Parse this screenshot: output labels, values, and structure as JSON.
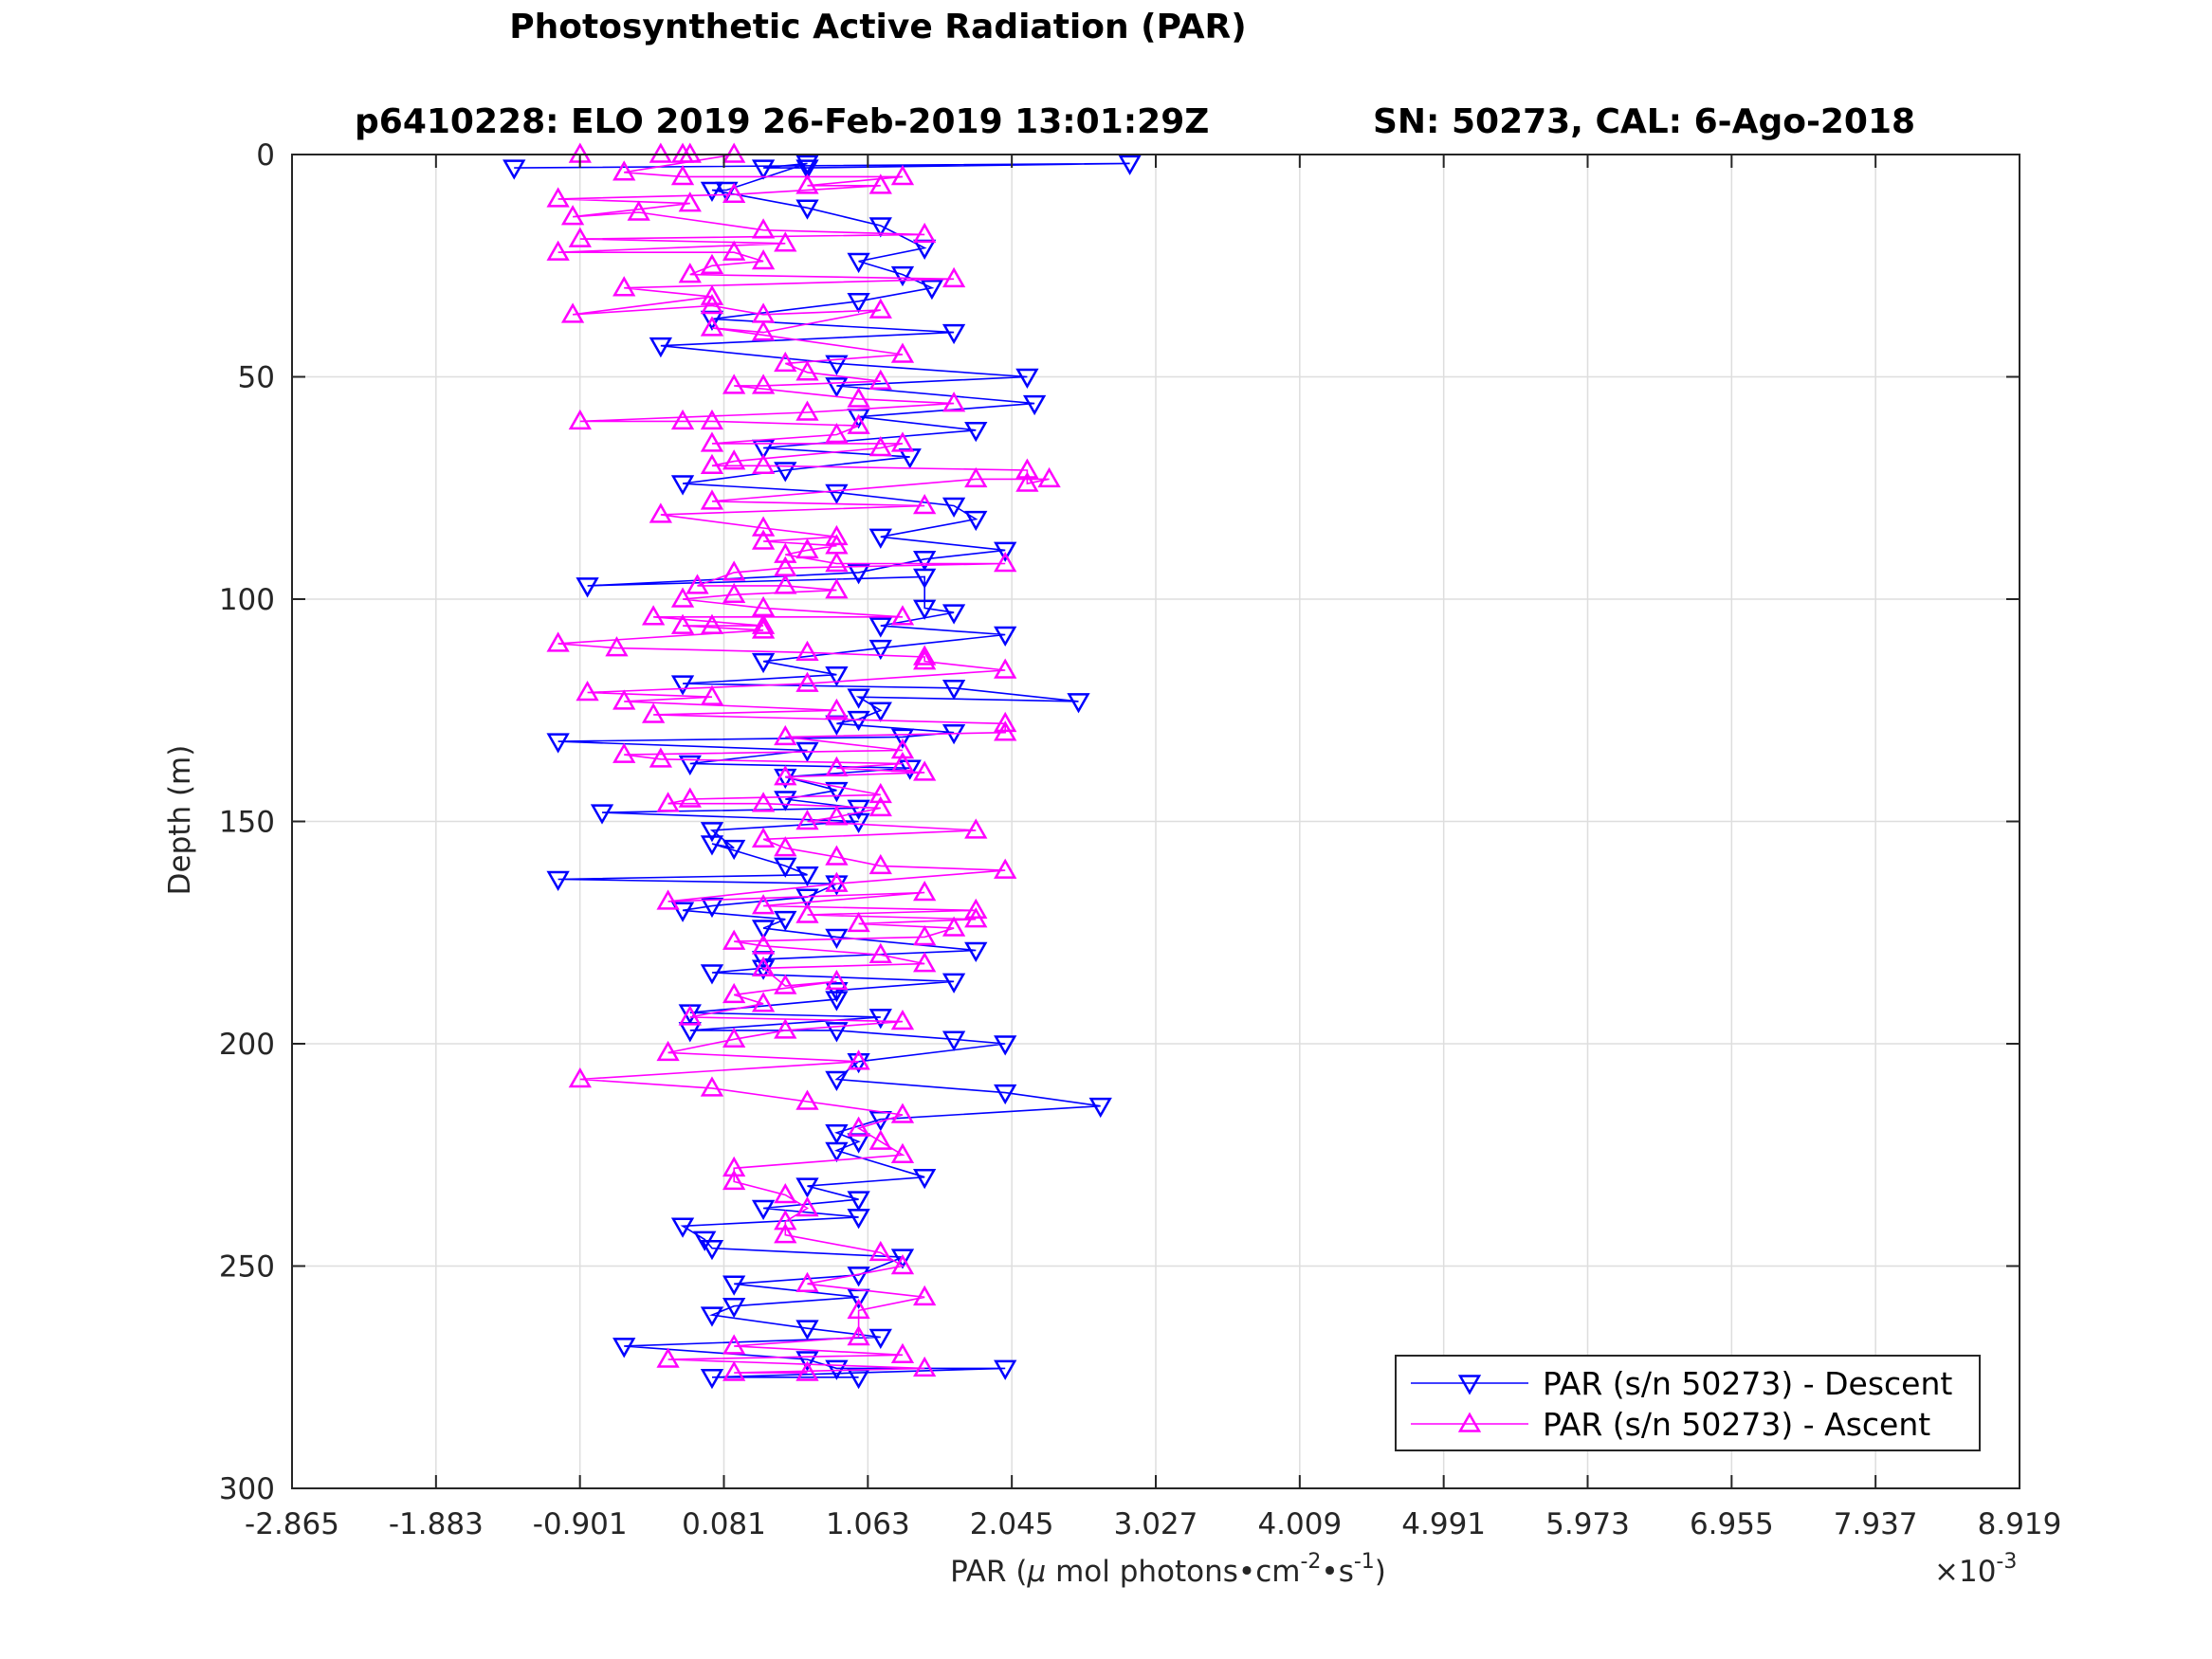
{
  "chart_data": {
    "type": "scatter",
    "title": "Photosynthetic Active Radiation (PAR)",
    "subtitle_left": "p6410228: ELO 2019 26-Feb-2019 13:01:29Z",
    "subtitle_right": "SN: 50273, CAL: 6-Ago-2018",
    "xlabel": "PAR (μ mol photons•cm⁻²•s⁻¹)",
    "xlabel_parts": {
      "pre": "PAR (",
      "mu": "μ",
      "mid1": " mol photons•cm",
      "sup1": "-2",
      "mid2": "•s",
      "sup2": "-1",
      "post": ")"
    },
    "x_exponent_base": "×10",
    "x_exponent_power": "-3",
    "ylabel": "Depth (m)",
    "xlim": [
      -2.865,
      8.919
    ],
    "ylim": [
      0,
      300
    ],
    "y_reversed": true,
    "x_ticks": [
      "-2.865",
      "-1.883",
      "-0.901",
      "0.081",
      "1.063",
      "2.045",
      "3.027",
      "4.009",
      "4.991",
      "5.973",
      "6.955",
      "7.937",
      "8.919"
    ],
    "x_tick_values": [
      -2.865,
      -1.883,
      -0.901,
      0.081,
      1.063,
      2.045,
      3.027,
      4.009,
      4.991,
      5.973,
      6.955,
      7.937,
      8.919
    ],
    "y_ticks": [
      "0",
      "50",
      "100",
      "150",
      "200",
      "250",
      "300"
    ],
    "y_tick_values": [
      0,
      50,
      100,
      150,
      200,
      250,
      300
    ],
    "grid": true,
    "legend_position": "bottom-right",
    "series": [
      {
        "name": "PAR (s/n 50273) - Descent",
        "color": "#0000ff",
        "marker": "triangle-down",
        "points": [
          [
            -1.35,
            3
          ],
          [
            2.85,
            2
          ],
          [
            0.65,
            3
          ],
          [
            0.35,
            3
          ],
          [
            0.65,
            2
          ],
          [
            0.1,
            8
          ],
          [
            0.0,
            8
          ],
          [
            0.65,
            12
          ],
          [
            1.15,
            16
          ],
          [
            1.45,
            21
          ],
          [
            1.0,
            24
          ],
          [
            1.3,
            27
          ],
          [
            1.5,
            30
          ],
          [
            1.0,
            33
          ],
          [
            0.0,
            37
          ],
          [
            1.65,
            40
          ],
          [
            -0.35,
            43
          ],
          [
            0.85,
            47
          ],
          [
            2.15,
            50
          ],
          [
            0.85,
            52
          ],
          [
            2.2,
            56
          ],
          [
            1.0,
            59
          ],
          [
            1.8,
            62
          ],
          [
            0.35,
            66
          ],
          [
            1.35,
            68
          ],
          [
            0.5,
            71
          ],
          [
            -0.2,
            74
          ],
          [
            0.85,
            76
          ],
          [
            1.65,
            79
          ],
          [
            1.8,
            82
          ],
          [
            1.15,
            86
          ],
          [
            2.0,
            89
          ],
          [
            1.45,
            91
          ],
          [
            1.0,
            94
          ],
          [
            -0.85,
            97
          ],
          [
            1.45,
            95
          ],
          [
            1.45,
            102
          ],
          [
            1.65,
            103
          ],
          [
            1.15,
            106
          ],
          [
            2.0,
            108
          ],
          [
            1.15,
            111
          ],
          [
            0.35,
            114
          ],
          [
            0.85,
            117
          ],
          [
            -0.2,
            119
          ],
          [
            1.65,
            120
          ],
          [
            2.5,
            123
          ],
          [
            1.0,
            122
          ],
          [
            1.15,
            125
          ],
          [
            1.0,
            127
          ],
          [
            0.85,
            128
          ],
          [
            1.65,
            130
          ],
          [
            1.3,
            131
          ],
          [
            -1.05,
            132
          ],
          [
            0.65,
            134
          ],
          [
            -0.15,
            137
          ],
          [
            1.35,
            138
          ],
          [
            0.5,
            140
          ],
          [
            0.85,
            143
          ],
          [
            0.5,
            145
          ],
          [
            1.0,
            147
          ],
          [
            -0.75,
            148
          ],
          [
            1.0,
            150
          ],
          [
            0.0,
            152
          ],
          [
            0.15,
            156
          ],
          [
            0.0,
            155
          ],
          [
            0.5,
            160
          ],
          [
            0.65,
            162
          ],
          [
            -1.05,
            163
          ],
          [
            0.85,
            164
          ],
          [
            0.65,
            167
          ],
          [
            0.0,
            169
          ],
          [
            -0.2,
            170
          ],
          [
            0.5,
            172
          ],
          [
            0.35,
            174
          ],
          [
            0.85,
            176
          ],
          [
            1.8,
            179
          ],
          [
            0.35,
            181
          ],
          [
            0.35,
            183
          ],
          [
            0.0,
            184
          ],
          [
            1.65,
            186
          ],
          [
            0.85,
            188
          ],
          [
            0.85,
            190
          ],
          [
            -0.15,
            193
          ],
          [
            1.15,
            194
          ],
          [
            -0.15,
            197
          ],
          [
            0.85,
            197
          ],
          [
            1.65,
            199
          ],
          [
            2.0,
            200
          ],
          [
            1.0,
            204
          ],
          [
            0.85,
            208
          ],
          [
            2.0,
            211
          ],
          [
            2.65,
            214
          ],
          [
            1.15,
            217
          ],
          [
            0.85,
            220
          ],
          [
            1.0,
            222
          ],
          [
            0.85,
            224
          ],
          [
            1.45,
            230
          ],
          [
            0.65,
            232
          ],
          [
            1.0,
            235
          ],
          [
            0.35,
            237
          ],
          [
            1.0,
            239
          ],
          [
            -0.2,
            241
          ],
          [
            -0.05,
            244
          ],
          [
            0.0,
            246
          ],
          [
            1.3,
            248
          ],
          [
            1.0,
            252
          ],
          [
            0.15,
            254
          ],
          [
            1.0,
            257
          ],
          [
            0.15,
            259
          ],
          [
            0.0,
            261
          ],
          [
            0.65,
            264
          ],
          [
            1.15,
            266
          ],
          [
            -0.6,
            268
          ],
          [
            0.65,
            271
          ],
          [
            0.85,
            273
          ],
          [
            2.0,
            273
          ],
          [
            0.0,
            275
          ],
          [
            1.0,
            275
          ]
        ]
      },
      {
        "name": "PAR (s/n 50273) - Ascent",
        "color": "#ff00ff",
        "marker": "triangle-up",
        "points": [
          [
            0.65,
            274
          ],
          [
            0.15,
            274
          ],
          [
            1.45,
            273
          ],
          [
            -0.3,
            271
          ],
          [
            1.3,
            270
          ],
          [
            0.15,
            268
          ],
          [
            1.0,
            266
          ],
          [
            1.0,
            260
          ],
          [
            1.45,
            257
          ],
          [
            0.65,
            254
          ],
          [
            1.3,
            250
          ],
          [
            1.15,
            247
          ],
          [
            0.5,
            243
          ],
          [
            0.5,
            240
          ],
          [
            0.65,
            237
          ],
          [
            0.5,
            234
          ],
          [
            0.15,
            231
          ],
          [
            0.15,
            228
          ],
          [
            1.3,
            225
          ],
          [
            1.15,
            222
          ],
          [
            1.0,
            219
          ],
          [
            1.3,
            216
          ],
          [
            0.65,
            213
          ],
          [
            0.0,
            210
          ],
          [
            -0.9,
            208
          ],
          [
            1.0,
            204
          ],
          [
            -0.3,
            202
          ],
          [
            0.15,
            199
          ],
          [
            0.5,
            197
          ],
          [
            1.3,
            195
          ],
          [
            -0.15,
            194
          ],
          [
            0.35,
            191
          ],
          [
            0.15,
            189
          ],
          [
            0.85,
            186
          ],
          [
            0.5,
            187
          ],
          [
            0.35,
            183
          ],
          [
            1.45,
            182
          ],
          [
            1.15,
            180
          ],
          [
            0.35,
            178
          ],
          [
            0.15,
            177
          ],
          [
            1.45,
            176
          ],
          [
            1.65,
            174
          ],
          [
            1.0,
            173
          ],
          [
            1.8,
            172
          ],
          [
            0.65,
            171
          ],
          [
            1.8,
            170
          ],
          [
            0.35,
            169
          ],
          [
            1.45,
            166
          ],
          [
            -0.3,
            168
          ],
          [
            0.85,
            164
          ],
          [
            2.0,
            161
          ],
          [
            1.15,
            160
          ],
          [
            0.85,
            158
          ],
          [
            0.5,
            156
          ],
          [
            0.35,
            154
          ],
          [
            1.8,
            152
          ],
          [
            0.65,
            150
          ],
          [
            0.85,
            149
          ],
          [
            1.15,
            147
          ],
          [
            0.35,
            146
          ],
          [
            -0.3,
            146
          ],
          [
            -0.15,
            145
          ],
          [
            1.15,
            144
          ],
          [
            0.5,
            140
          ],
          [
            1.45,
            139
          ],
          [
            0.85,
            138
          ],
          [
            1.3,
            137
          ],
          [
            -0.35,
            136
          ],
          [
            -0.6,
            135
          ],
          [
            1.3,
            134
          ],
          [
            0.5,
            131
          ],
          [
            2.0,
            130
          ],
          [
            2.0,
            128
          ],
          [
            -0.4,
            126
          ],
          [
            0.85,
            125
          ],
          [
            -0.6,
            123
          ],
          [
            0.0,
            122
          ],
          [
            -0.85,
            121
          ],
          [
            0.65,
            119
          ],
          [
            2.0,
            116
          ],
          [
            1.45,
            114
          ],
          [
            1.45,
            113
          ],
          [
            0.65,
            112
          ],
          [
            -0.65,
            111
          ],
          [
            -1.05,
            110
          ],
          [
            0.35,
            107
          ],
          [
            -0.2,
            106
          ],
          [
            0.0,
            106
          ],
          [
            0.35,
            106
          ],
          [
            -0.4,
            104
          ],
          [
            1.3,
            104
          ],
          [
            0.35,
            102
          ],
          [
            -0.2,
            100
          ],
          [
            0.15,
            99
          ],
          [
            0.85,
            98
          ],
          [
            0.5,
            97
          ],
          [
            -0.1,
            97
          ],
          [
            0.15,
            94
          ],
          [
            0.5,
            93
          ],
          [
            2.0,
            92
          ],
          [
            0.85,
            92
          ],
          [
            0.5,
            90
          ],
          [
            0.65,
            89
          ],
          [
            0.85,
            88
          ],
          [
            0.35,
            87
          ],
          [
            0.85,
            86
          ],
          [
            0.35,
            84
          ],
          [
            -0.35,
            81
          ],
          [
            1.45,
            79
          ],
          [
            0.0,
            78
          ],
          [
            1.8,
            73
          ],
          [
            2.3,
            73
          ],
          [
            2.15,
            74
          ],
          [
            2.15,
            71
          ],
          [
            0.35,
            70
          ],
          [
            0.0,
            70
          ],
          [
            0.15,
            69
          ],
          [
            1.15,
            66
          ],
          [
            1.3,
            65
          ],
          [
            0.0,
            65
          ],
          [
            0.85,
            63
          ],
          [
            1.0,
            61
          ],
          [
            0.0,
            60
          ],
          [
            -0.2,
            60
          ],
          [
            -0.9,
            60
          ],
          [
            0.65,
            58
          ],
          [
            1.65,
            56
          ],
          [
            1.0,
            55
          ],
          [
            0.15,
            52
          ],
          [
            0.35,
            52
          ],
          [
            1.15,
            51
          ],
          [
            0.65,
            49
          ],
          [
            0.5,
            47
          ],
          [
            1.3,
            45
          ],
          [
            0.0,
            39
          ],
          [
            0.35,
            40
          ],
          [
            1.15,
            35
          ],
          [
            0.35,
            36
          ],
          [
            0.0,
            34
          ],
          [
            -0.95,
            36
          ],
          [
            0.0,
            32
          ],
          [
            -0.6,
            30
          ],
          [
            1.65,
            28
          ],
          [
            -0.15,
            27
          ],
          [
            0.0,
            25
          ],
          [
            0.35,
            24
          ],
          [
            0.15,
            22
          ],
          [
            -1.05,
            22
          ],
          [
            0.5,
            20
          ],
          [
            -0.9,
            19
          ],
          [
            1.45,
            18
          ],
          [
            0.35,
            17
          ],
          [
            -0.5,
            13
          ],
          [
            -0.95,
            14
          ],
          [
            -0.15,
            11
          ],
          [
            -1.05,
            10
          ],
          [
            0.15,
            9
          ],
          [
            1.15,
            7
          ],
          [
            0.65,
            7
          ],
          [
            1.3,
            5
          ],
          [
            -0.2,
            5
          ],
          [
            -0.6,
            4
          ],
          [
            0.15,
            0
          ],
          [
            -0.35,
            0
          ],
          [
            -0.15,
            0
          ],
          [
            -0.9,
            0
          ],
          [
            -0.2,
            0
          ]
        ]
      }
    ]
  }
}
